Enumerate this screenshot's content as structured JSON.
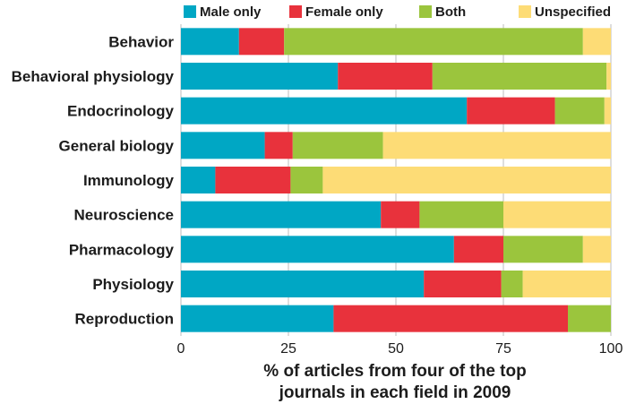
{
  "chart_data": {
    "type": "bar",
    "orientation": "horizontal",
    "stacked": true,
    "categories": [
      "Behavior",
      "Behavioral physiology",
      "Endocrinology",
      "General biology",
      "Immunology",
      "Neuroscience",
      "Pharmacology",
      "Physiology",
      "Reproduction"
    ],
    "series": [
      {
        "name": "Male only",
        "color": "#00a7c4",
        "values": [
          13.5,
          36.5,
          66.5,
          19.5,
          8,
          46.5,
          63.5,
          56.5,
          35.5
        ]
      },
      {
        "name": "Female only",
        "color": "#e8323c",
        "values": [
          10.5,
          22,
          20.5,
          6.5,
          17.5,
          9,
          11.5,
          18,
          54.5
        ]
      },
      {
        "name": "Both",
        "color": "#9bc53d",
        "values": [
          69.5,
          40.5,
          11.5,
          21,
          7.5,
          19.5,
          18.5,
          5,
          10
        ]
      },
      {
        "name": "Unspecified",
        "color": "#fddc76",
        "values": [
          6.5,
          1,
          1.5,
          53,
          67,
          25,
          6.5,
          20.5,
          0
        ]
      }
    ],
    "xlim": [
      0,
      100
    ],
    "xticks": [
      "0",
      "25",
      "50",
      "75",
      "100"
    ],
    "xlabel": [
      "% of articles from four of the top",
      "journals in each field in 2009"
    ],
    "legend_position": "top",
    "grid": true
  }
}
